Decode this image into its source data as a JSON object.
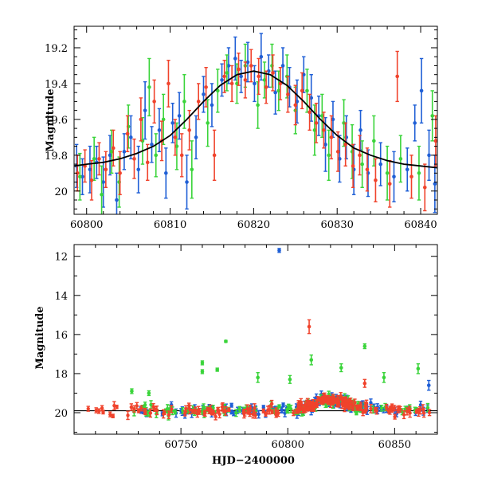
{
  "chart_data": [
    {
      "type": "scatter",
      "panel": "top",
      "xlim": [
        60798.5,
        60842
      ],
      "ylim": [
        20.13,
        19.08
      ],
      "y_inverted": true,
      "xticks": [
        60800,
        60810,
        60820,
        60830,
        60840
      ],
      "yticks": [
        19.2,
        19.4,
        19.6,
        19.8,
        20
      ],
      "ylabel": "Magnitude",
      "xlabel": "",
      "grid": false,
      "model_curve": {
        "baseline": 19.9,
        "peak_magnitude": 19.33,
        "peak_time": 60820.3,
        "points": [
          [
            60798.5,
            19.86
          ],
          [
            60800,
            19.85
          ],
          [
            60802,
            19.84
          ],
          [
            60804,
            19.82
          ],
          [
            60806,
            19.79
          ],
          [
            60808,
            19.75
          ],
          [
            60810,
            19.69
          ],
          [
            60812,
            19.6
          ],
          [
            60814,
            19.5
          ],
          [
            60816,
            19.41
          ],
          [
            60818,
            19.35
          ],
          [
            60820,
            19.33
          ],
          [
            60822,
            19.35
          ],
          [
            60824,
            19.41
          ],
          [
            60826,
            19.5
          ],
          [
            60828,
            19.6
          ],
          [
            60830,
            19.69
          ],
          [
            60832,
            19.76
          ],
          [
            60834,
            19.8
          ],
          [
            60836,
            19.83
          ],
          [
            60838,
            19.85
          ],
          [
            60840,
            19.86
          ],
          [
            60842,
            19.87
          ]
        ]
      },
      "series": [
        {
          "color": "#1f5fd6",
          "points": [
            [
              60798.8,
              19.86,
              0.12
            ],
            [
              60799.5,
              19.92,
              0.1
            ],
            [
              60800.4,
              19.88,
              0.13
            ],
            [
              60801.2,
              19.84,
              0.09
            ],
            [
              60802.0,
              19.95,
              0.14
            ],
            [
              60802.8,
              19.8,
              0.11
            ],
            [
              60803.6,
              20.05,
              0.15
            ],
            [
              60804.5,
              19.78,
              0.1
            ],
            [
              60805.3,
              19.7,
              0.12
            ],
            [
              60806.2,
              19.88,
              0.13
            ],
            [
              60807.0,
              19.55,
              0.16
            ],
            [
              60807.8,
              19.74,
              0.1
            ],
            [
              60808.7,
              19.66,
              0.12
            ],
            [
              60809.5,
              19.9,
              0.14
            ],
            [
              60810.3,
              19.62,
              0.11
            ],
            [
              60811.1,
              19.58,
              0.13
            ],
            [
              60812.0,
              19.95,
              0.15
            ],
            [
              60813.1,
              19.7,
              0.12
            ],
            [
              60814.0,
              19.46,
              0.1
            ],
            [
              60815.0,
              19.52,
              0.12
            ],
            [
              60816.2,
              19.38,
              0.09
            ],
            [
              60817.0,
              19.3,
              0.1
            ],
            [
              60817.8,
              19.26,
              0.12
            ],
            [
              60818.5,
              19.36,
              0.09
            ],
            [
              60819.3,
              19.28,
              0.11
            ],
            [
              60820.1,
              19.4,
              0.1
            ],
            [
              60820.9,
              19.25,
              0.13
            ],
            [
              60821.8,
              19.33,
              0.09
            ],
            [
              60822.6,
              19.45,
              0.12
            ],
            [
              60823.5,
              19.3,
              0.1
            ],
            [
              60824.3,
              19.42,
              0.11
            ],
            [
              60825.2,
              19.5,
              0.12
            ],
            [
              60826.0,
              19.35,
              0.1
            ],
            [
              60826.9,
              19.48,
              0.13
            ],
            [
              60827.8,
              19.58,
              0.11
            ],
            [
              60828.6,
              19.74,
              0.15
            ],
            [
              60829.5,
              19.6,
              0.1
            ],
            [
              60830.3,
              19.82,
              0.13
            ],
            [
              60831.1,
              19.7,
              0.12
            ],
            [
              60832.0,
              19.88,
              0.14
            ],
            [
              60832.8,
              19.66,
              0.11
            ],
            [
              60833.7,
              19.9,
              0.13
            ],
            [
              60835.2,
              19.85,
              0.12
            ],
            [
              60836.8,
              19.92,
              0.14
            ],
            [
              60838.4,
              19.88,
              0.12
            ],
            [
              60839.3,
              19.62,
              0.1
            ],
            [
              60840.1,
              19.44,
              0.18
            ],
            [
              60841.0,
              19.8,
              0.14
            ],
            [
              60841.7,
              19.96,
              0.16
            ]
          ]
        },
        {
          "color": "#3ad43a",
          "points": [
            [
              60799.2,
              19.92,
              0.13
            ],
            [
              60800.9,
              19.82,
              0.12
            ],
            [
              60801.8,
              20.02,
              0.16
            ],
            [
              60803.0,
              19.78,
              0.12
            ],
            [
              60803.9,
              19.95,
              0.14
            ],
            [
              60805.0,
              19.64,
              0.12
            ],
            [
              60806.7,
              19.72,
              0.13
            ],
            [
              60807.5,
              19.42,
              0.16
            ],
            [
              60808.3,
              19.8,
              0.12
            ],
            [
              60809.2,
              19.6,
              0.14
            ],
            [
              60810.8,
              19.75,
              0.13
            ],
            [
              60811.7,
              19.5,
              0.15
            ],
            [
              60812.6,
              19.88,
              0.16
            ],
            [
              60814.5,
              19.62,
              0.13
            ],
            [
              60815.7,
              19.44,
              0.12
            ],
            [
              60816.8,
              19.34,
              0.1
            ],
            [
              60818.0,
              19.4,
              0.11
            ],
            [
              60819.0,
              19.3,
              0.12
            ],
            [
              60820.5,
              19.52,
              0.13
            ],
            [
              60821.3,
              19.38,
              0.1
            ],
            [
              60822.2,
              19.3,
              0.12
            ],
            [
              60823.0,
              19.44,
              0.11
            ],
            [
              60824.0,
              19.36,
              0.12
            ],
            [
              60825.0,
              19.55,
              0.13
            ],
            [
              60826.4,
              19.44,
              0.12
            ],
            [
              60827.3,
              19.66,
              0.14
            ],
            [
              60828.2,
              19.58,
              0.12
            ],
            [
              60829.0,
              19.8,
              0.14
            ],
            [
              60830.8,
              19.62,
              0.13
            ],
            [
              60831.8,
              19.78,
              0.15
            ],
            [
              60833.0,
              19.85,
              0.13
            ],
            [
              60834.4,
              19.72,
              0.14
            ],
            [
              60836.0,
              19.9,
              0.15
            ],
            [
              60837.6,
              19.82,
              0.13
            ],
            [
              60839.8,
              19.9,
              0.15
            ],
            [
              60841.4,
              19.58,
              0.14
            ]
          ]
        },
        {
          "color": "#f0432c",
          "points": [
            [
              60798.9,
              19.9,
              0.1
            ],
            [
              60799.8,
              19.86,
              0.09
            ],
            [
              60800.6,
              19.94,
              0.11
            ],
            [
              60801.5,
              19.82,
              0.09
            ],
            [
              60802.3,
              19.88,
              0.1
            ],
            [
              60803.2,
              19.76,
              0.1
            ],
            [
              60804.0,
              19.9,
              0.12
            ],
            [
              60804.9,
              19.68,
              0.1
            ],
            [
              60805.7,
              19.82,
              0.11
            ],
            [
              60806.5,
              19.6,
              0.12
            ],
            [
              60807.3,
              19.84,
              0.1
            ],
            [
              60808.1,
              19.5,
              0.12
            ],
            [
              60809.0,
              19.72,
              0.11
            ],
            [
              60809.8,
              19.4,
              0.13
            ],
            [
              60810.6,
              19.7,
              0.1
            ],
            [
              60811.4,
              19.8,
              0.12
            ],
            [
              60812.3,
              19.66,
              0.11
            ],
            [
              60813.4,
              19.5,
              0.1
            ],
            [
              60814.3,
              19.42,
              0.11
            ],
            [
              60815.3,
              19.8,
              0.14
            ],
            [
              60816.5,
              19.36,
              0.09
            ],
            [
              60817.4,
              19.4,
              0.1
            ],
            [
              60818.2,
              19.32,
              0.09
            ],
            [
              60819.0,
              19.38,
              0.1
            ],
            [
              60819.7,
              19.3,
              0.09
            ],
            [
              60820.6,
              19.36,
              0.1
            ],
            [
              60821.5,
              19.42,
              0.09
            ],
            [
              60822.3,
              19.34,
              0.1
            ],
            [
              60823.2,
              19.4,
              0.09
            ],
            [
              60824.1,
              19.46,
              0.1
            ],
            [
              60825.0,
              19.52,
              0.11
            ],
            [
              60825.8,
              19.44,
              0.1
            ],
            [
              60826.7,
              19.56,
              0.1
            ],
            [
              60827.5,
              19.62,
              0.11
            ],
            [
              60828.4,
              19.66,
              0.1
            ],
            [
              60829.3,
              19.7,
              0.12
            ],
            [
              60830.1,
              19.78,
              0.11
            ],
            [
              60831.0,
              19.74,
              0.12
            ],
            [
              60831.9,
              19.86,
              0.12
            ],
            [
              60832.7,
              19.8,
              0.11
            ],
            [
              60833.6,
              19.88,
              0.12
            ],
            [
              60834.6,
              19.94,
              0.12
            ],
            [
              60836.3,
              19.96,
              0.13
            ],
            [
              60837.2,
              19.36,
              0.14
            ],
            [
              60838.9,
              19.92,
              0.12
            ],
            [
              60840.5,
              19.98,
              0.13
            ],
            [
              60841.8,
              19.72,
              0.14
            ]
          ]
        }
      ]
    },
    {
      "type": "scatter",
      "panel": "bottom",
      "xlim": [
        60700,
        60870
      ],
      "ylim": [
        21.1,
        11.4
      ],
      "y_inverted": true,
      "xticks": [
        60750,
        60800,
        60850
      ],
      "yticks": [
        12,
        14,
        16,
        18,
        20
      ],
      "xlabel": "HJD−2400000",
      "ylabel": "Magnitude",
      "grid": false,
      "baseline": 19.9,
      "outliers": [
        {
          "series": 0,
          "x": 60796,
          "y": 11.7,
          "err": 0.1
        },
        {
          "series": 2,
          "x": 60810,
          "y": 15.6,
          "err": 0.35
        },
        {
          "series": 1,
          "x": 60771,
          "y": 16.35,
          "err": 0.05
        },
        {
          "series": 1,
          "x": 60760,
          "y": 17.45,
          "err": 0.1
        },
        {
          "series": 1,
          "x": 60760,
          "y": 17.9,
          "err": 0.1
        },
        {
          "series": 1,
          "x": 60767,
          "y": 17.8,
          "err": 0.08
        },
        {
          "series": 1,
          "x": 60811,
          "y": 17.3,
          "err": 0.25
        },
        {
          "series": 1,
          "x": 60836,
          "y": 16.6,
          "err": 0.12
        },
        {
          "series": 1,
          "x": 60825,
          "y": 17.7,
          "err": 0.2
        },
        {
          "series": 1,
          "x": 60861,
          "y": 17.75,
          "err": 0.25
        },
        {
          "series": 1,
          "x": 60786,
          "y": 18.2,
          "err": 0.25
        },
        {
          "series": 1,
          "x": 60801,
          "y": 18.3,
          "err": 0.2
        },
        {
          "series": 2,
          "x": 60836,
          "y": 18.5,
          "err": 0.2
        },
        {
          "series": 0,
          "x": 60866,
          "y": 18.6,
          "err": 0.25
        },
        {
          "series": 1,
          "x": 60845,
          "y": 18.2,
          "err": 0.25
        },
        {
          "series": 1,
          "x": 60727,
          "y": 18.9,
          "err": 0.12
        },
        {
          "series": 1,
          "x": 60735,
          "y": 19.0,
          "err": 0.12
        }
      ],
      "series": [
        {
          "name": "",
          "color": "#1f5fd6",
          "start": 60730,
          "end": 60867,
          "count": 150,
          "seed": 3
        },
        {
          "name": "",
          "color": "#3ad43a",
          "start": 60728,
          "end": 60866,
          "count": 120,
          "seed": 7
        },
        {
          "name": "",
          "color": "#f0432c",
          "start": 60706,
          "end": 60867,
          "count": 200,
          "seed": 11
        }
      ]
    }
  ]
}
